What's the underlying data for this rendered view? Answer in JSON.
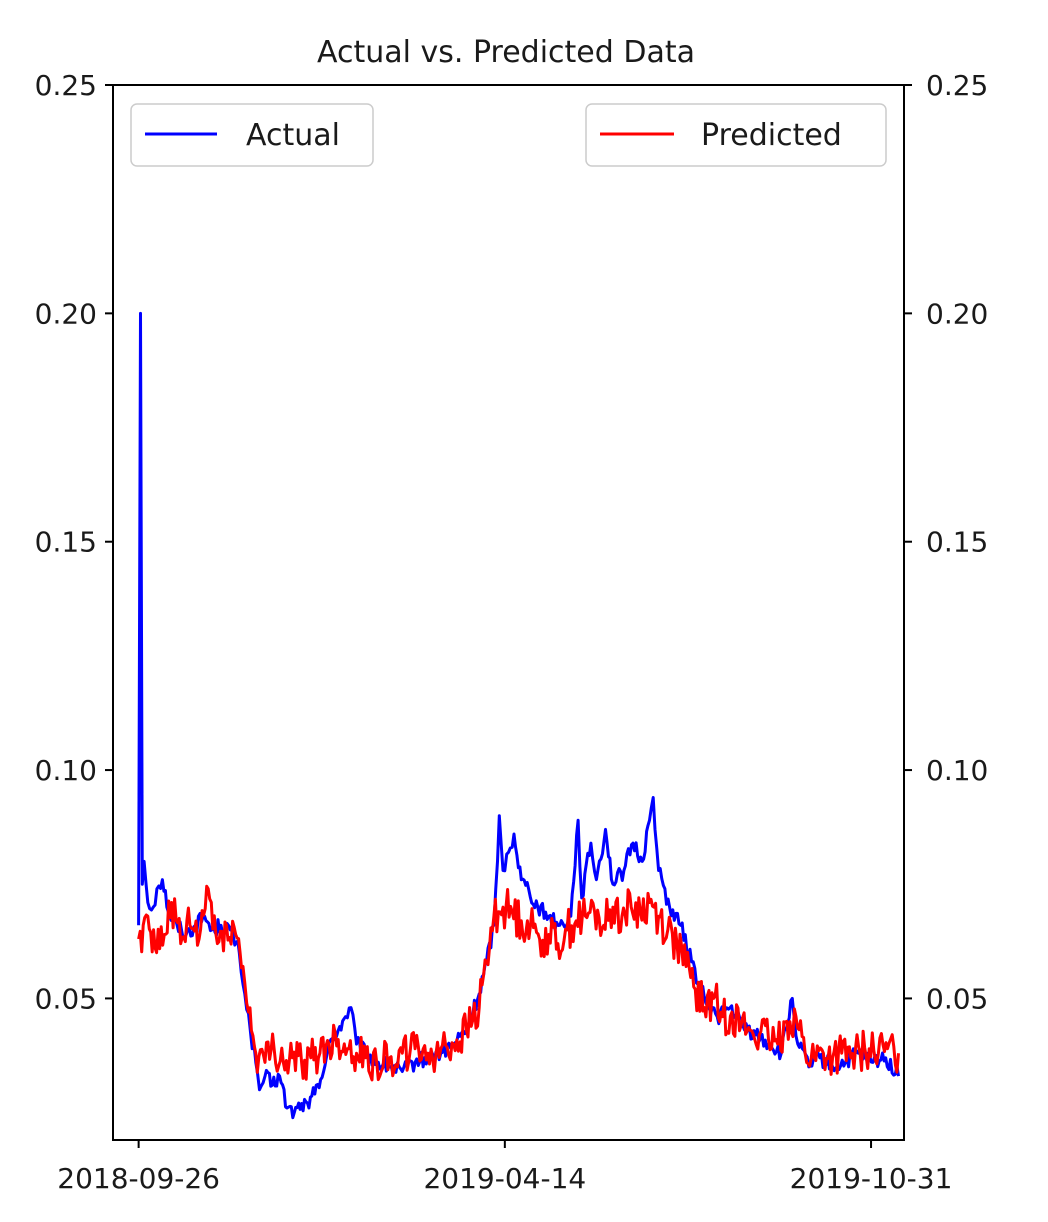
{
  "chart_data": {
    "type": "line",
    "title": "Actual vs. Predicted Data",
    "xlabel": "",
    "ylabel": "",
    "x_axis": {
      "type": "date",
      "range": [
        "2018-09-12",
        "2019-11-18"
      ],
      "ticks": [
        "2018-09-26",
        "2019-04-14",
        "2019-10-31"
      ]
    },
    "y_axis": {
      "range": [
        0.019,
        0.25
      ],
      "ticks": [
        0.05,
        0.1,
        0.15,
        0.2,
        0.25
      ],
      "tick_labels": [
        "0.05",
        "0.10",
        "0.15",
        "0.20",
        "0.25"
      ],
      "mirrored_right": true
    },
    "grid": false,
    "series": [
      {
        "name": "Actual",
        "color": "#0000ff",
        "legend_position": "upper-left",
        "points": [
          [
            "2018-09-26",
            0.066
          ],
          [
            "2018-09-27",
            0.2
          ],
          [
            "2018-09-28",
            0.075
          ],
          [
            "2018-09-29",
            0.08
          ],
          [
            "2018-10-01",
            0.071
          ],
          [
            "2018-10-04",
            0.07
          ],
          [
            "2018-10-06",
            0.074
          ],
          [
            "2018-10-09",
            0.076
          ],
          [
            "2018-10-13",
            0.068
          ],
          [
            "2018-10-17",
            0.066
          ],
          [
            "2018-10-22",
            0.064
          ],
          [
            "2018-10-27",
            0.066
          ],
          [
            "2018-11-01",
            0.068
          ],
          [
            "2018-11-05",
            0.065
          ],
          [
            "2018-11-10",
            0.066
          ],
          [
            "2018-11-15",
            0.065
          ],
          [
            "2018-11-20",
            0.06
          ],
          [
            "2018-11-23",
            0.051
          ],
          [
            "2018-11-26",
            0.043
          ],
          [
            "2018-11-29",
            0.036
          ],
          [
            "2018-12-01",
            0.03
          ],
          [
            "2018-12-04",
            0.033
          ],
          [
            "2018-12-08",
            0.031
          ],
          [
            "2018-12-12",
            0.033
          ],
          [
            "2018-12-16",
            0.026
          ],
          [
            "2018-12-20",
            0.025
          ],
          [
            "2018-12-24",
            0.027
          ],
          [
            "2018-12-28",
            0.026
          ],
          [
            "2019-01-01",
            0.031
          ],
          [
            "2019-01-05",
            0.034
          ],
          [
            "2019-01-09",
            0.041
          ],
          [
            "2019-01-13",
            0.043
          ],
          [
            "2019-01-17",
            0.046
          ],
          [
            "2019-01-20",
            0.048
          ],
          [
            "2019-01-23",
            0.04
          ],
          [
            "2019-01-28",
            0.038
          ],
          [
            "2019-02-03",
            0.036
          ],
          [
            "2019-02-10",
            0.035
          ],
          [
            "2019-02-17",
            0.034
          ],
          [
            "2019-02-24",
            0.036
          ],
          [
            "2019-03-03",
            0.037
          ],
          [
            "2019-03-10",
            0.038
          ],
          [
            "2019-03-17",
            0.04
          ],
          [
            "2019-03-24",
            0.043
          ],
          [
            "2019-03-31",
            0.051
          ],
          [
            "2019-04-04",
            0.058
          ],
          [
            "2019-04-08",
            0.066
          ],
          [
            "2019-04-10",
            0.08
          ],
          [
            "2019-04-11",
            0.09
          ],
          [
            "2019-04-13",
            0.078
          ],
          [
            "2019-04-16",
            0.082
          ],
          [
            "2019-04-19",
            0.086
          ],
          [
            "2019-04-23",
            0.076
          ],
          [
            "2019-04-27",
            0.074
          ],
          [
            "2019-05-02",
            0.07
          ],
          [
            "2019-05-08",
            0.068
          ],
          [
            "2019-05-14",
            0.066
          ],
          [
            "2019-05-20",
            0.068
          ],
          [
            "2019-05-24",
            0.089
          ],
          [
            "2019-05-26",
            0.072
          ],
          [
            "2019-05-31",
            0.084
          ],
          [
            "2019-06-03",
            0.076
          ],
          [
            "2019-06-08",
            0.087
          ],
          [
            "2019-06-12",
            0.075
          ],
          [
            "2019-06-18",
            0.078
          ],
          [
            "2019-06-23",
            0.084
          ],
          [
            "2019-06-28",
            0.08
          ],
          [
            "2019-07-02",
            0.089
          ],
          [
            "2019-07-04",
            0.094
          ],
          [
            "2019-07-07",
            0.078
          ],
          [
            "2019-07-13",
            0.07
          ],
          [
            "2019-07-19",
            0.066
          ],
          [
            "2019-07-25",
            0.058
          ],
          [
            "2019-08-01",
            0.05
          ],
          [
            "2019-08-08",
            0.046
          ],
          [
            "2019-08-15",
            0.048
          ],
          [
            "2019-08-22",
            0.044
          ],
          [
            "2019-08-29",
            0.042
          ],
          [
            "2019-09-05",
            0.04
          ],
          [
            "2019-09-12",
            0.038
          ],
          [
            "2019-09-18",
            0.05
          ],
          [
            "2019-09-21",
            0.04
          ],
          [
            "2019-09-27",
            0.035
          ],
          [
            "2019-10-03",
            0.037
          ],
          [
            "2019-10-10",
            0.035
          ],
          [
            "2019-10-17",
            0.036
          ],
          [
            "2019-10-24",
            0.038
          ],
          [
            "2019-11-01",
            0.036
          ],
          [
            "2019-11-08",
            0.037
          ],
          [
            "2019-11-15",
            0.033
          ]
        ]
      },
      {
        "name": "Predicted",
        "color": "#ff0000",
        "legend_position": "upper-right",
        "points": [
          [
            "2018-09-26",
            0.063
          ],
          [
            "2018-10-01",
            0.068
          ],
          [
            "2018-10-05",
            0.061
          ],
          [
            "2018-10-10",
            0.064
          ],
          [
            "2018-10-14",
            0.071
          ],
          [
            "2018-10-19",
            0.062
          ],
          [
            "2018-10-24",
            0.066
          ],
          [
            "2018-10-29",
            0.063
          ],
          [
            "2018-11-03",
            0.074
          ],
          [
            "2018-11-08",
            0.062
          ],
          [
            "2018-11-13",
            0.066
          ],
          [
            "2018-11-18",
            0.064
          ],
          [
            "2018-11-22",
            0.057
          ],
          [
            "2018-11-25",
            0.047
          ],
          [
            "2018-11-29",
            0.038
          ],
          [
            "2018-12-04",
            0.036
          ],
          [
            "2018-12-09",
            0.039
          ],
          [
            "2018-12-14",
            0.036
          ],
          [
            "2018-12-19",
            0.037
          ],
          [
            "2018-12-24",
            0.036
          ],
          [
            "2018-12-29",
            0.037
          ],
          [
            "2019-01-03",
            0.038
          ],
          [
            "2019-01-08",
            0.04
          ],
          [
            "2019-01-13",
            0.041
          ],
          [
            "2019-01-18",
            0.039
          ],
          [
            "2019-01-23",
            0.038
          ],
          [
            "2019-01-28",
            0.037
          ],
          [
            "2019-02-03",
            0.036
          ],
          [
            "2019-02-10",
            0.037
          ],
          [
            "2019-02-17",
            0.038
          ],
          [
            "2019-02-24",
            0.039
          ],
          [
            "2019-03-03",
            0.038
          ],
          [
            "2019-03-10",
            0.039
          ],
          [
            "2019-03-17",
            0.04
          ],
          [
            "2019-03-24",
            0.043
          ],
          [
            "2019-03-31",
            0.048
          ],
          [
            "2019-04-04",
            0.058
          ],
          [
            "2019-04-08",
            0.068
          ],
          [
            "2019-04-13",
            0.07
          ],
          [
            "2019-04-18",
            0.069
          ],
          [
            "2019-04-23",
            0.067
          ],
          [
            "2019-04-28",
            0.066
          ],
          [
            "2019-05-03",
            0.063
          ],
          [
            "2019-05-08",
            0.064
          ],
          [
            "2019-05-13",
            0.062
          ],
          [
            "2019-05-18",
            0.065
          ],
          [
            "2019-05-23",
            0.067
          ],
          [
            "2019-05-28",
            0.068
          ],
          [
            "2019-06-02",
            0.069
          ],
          [
            "2019-06-07",
            0.066
          ],
          [
            "2019-06-12",
            0.07
          ],
          [
            "2019-06-17",
            0.068
          ],
          [
            "2019-06-22",
            0.07
          ],
          [
            "2019-06-27",
            0.069
          ],
          [
            "2019-07-02",
            0.071
          ],
          [
            "2019-07-07",
            0.068
          ],
          [
            "2019-07-12",
            0.065
          ],
          [
            "2019-07-17",
            0.062
          ],
          [
            "2019-07-22",
            0.057
          ],
          [
            "2019-07-27",
            0.052
          ],
          [
            "2019-08-01",
            0.048
          ],
          [
            "2019-08-06",
            0.05
          ],
          [
            "2019-08-11",
            0.046
          ],
          [
            "2019-08-16",
            0.047
          ],
          [
            "2019-08-21",
            0.044
          ],
          [
            "2019-08-26",
            0.043
          ],
          [
            "2019-08-31",
            0.042
          ],
          [
            "2019-09-05",
            0.041
          ],
          [
            "2019-09-10",
            0.04
          ],
          [
            "2019-09-15",
            0.045
          ],
          [
            "2019-09-20",
            0.046
          ],
          [
            "2019-09-25",
            0.038
          ],
          [
            "2019-09-30",
            0.037
          ],
          [
            "2019-10-05",
            0.038
          ],
          [
            "2019-10-10",
            0.037
          ],
          [
            "2019-10-15",
            0.038
          ],
          [
            "2019-10-20",
            0.037
          ],
          [
            "2019-10-25",
            0.038
          ],
          [
            "2019-10-30",
            0.039
          ],
          [
            "2019-11-04",
            0.038
          ],
          [
            "2019-11-09",
            0.039
          ],
          [
            "2019-11-15",
            0.038
          ]
        ]
      }
    ]
  }
}
